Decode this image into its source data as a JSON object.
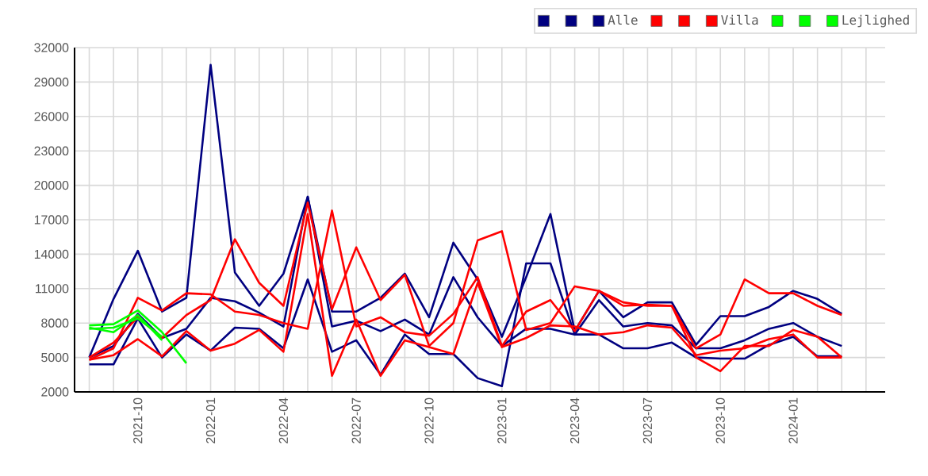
{
  "chart_data": {
    "type": "line",
    "x": [
      "2021-08",
      "2021-09",
      "2021-10",
      "2021-11",
      "2021-12",
      "2022-01",
      "2022-02",
      "2022-03",
      "2022-04",
      "2022-05",
      "2022-06",
      "2022-07",
      "2022-08",
      "2022-09",
      "2022-10",
      "2022-11",
      "2022-12",
      "2023-01",
      "2023-02",
      "2023-03",
      "2023-04",
      "2023-05",
      "2023-06",
      "2023-07",
      "2023-08",
      "2023-09",
      "2023-10",
      "2023-11",
      "2023-12",
      "2024-01",
      "2024-02",
      "2024-03"
    ],
    "series": [
      {
        "color": "#000080",
        "values": [
          5000,
          10100,
          14300,
          9000,
          10200,
          30500,
          12400,
          9500,
          12300,
          19000,
          9000,
          9000,
          10200,
          12300,
          8500,
          15000,
          11800,
          6800,
          12000,
          17500,
          7300,
          10800,
          8500,
          9800,
          9800,
          6100,
          8600,
          8600,
          9400,
          10800,
          10100,
          8800
        ]
      },
      {
        "color": "#000080",
        "values": [
          4400,
          4400,
          8400,
          5000,
          7000,
          5600,
          7600,
          7500,
          5800,
          11800,
          5500,
          6500,
          3500,
          7000,
          5300,
          5300,
          3200,
          2500,
          13200,
          13200,
          7000,
          7000,
          5800,
          5800,
          6300,
          5000,
          4900,
          4900,
          6100,
          6800,
          5100,
          5100
        ]
      },
      {
        "color": "#000080",
        "name": "Alle",
        "values": [
          5000,
          6000,
          8800,
          6700,
          7500,
          10200,
          9900,
          8900,
          7700,
          19000,
          7700,
          8200,
          7300,
          8300,
          7000,
          12000,
          8500,
          6000,
          7500,
          7500,
          7000,
          10000,
          7700,
          8000,
          7800,
          5800,
          5800,
          6500,
          7500,
          8000,
          6800,
          6000
        ]
      },
      {
        "color": "#ff0000",
        "values": [
          4800,
          5800,
          10200,
          9100,
          10600,
          10500,
          9000,
          8700,
          8000,
          7500,
          17800,
          7700,
          8500,
          7200,
          6900,
          8800,
          12000,
          6000,
          9000,
          10000,
          7300,
          10800,
          9500,
          9600,
          9500,
          5800,
          7000,
          11800,
          10600,
          10600,
          9500,
          8700
        ]
      },
      {
        "color": "#ff0000",
        "values": [
          5000,
          6300,
          8500,
          6700,
          8700,
          10000,
          15300,
          11500,
          9500,
          18500,
          9200,
          14600,
          10000,
          12200,
          6000,
          8000,
          15200,
          16000,
          7400,
          8000,
          11200,
          10800,
          9800,
          9500,
          9500,
          5000,
          3800,
          6000,
          6000,
          7400,
          6800,
          5000
        ]
      },
      {
        "color": "#ff0000",
        "name": "Villa",
        "values": [
          4800,
          5200,
          6600,
          5100,
          7300,
          5600,
          6200,
          7400,
          5500,
          17500,
          3400,
          8300,
          3400,
          6500,
          5900,
          5300,
          11500,
          5900,
          6700,
          7800,
          7700,
          7000,
          7200,
          7800,
          7600,
          5200,
          5600,
          5800,
          6600,
          7000,
          5000,
          5000
        ]
      },
      {
        "color": "#00ff00",
        "values": [
          7800,
          7900,
          9100,
          7200,
          4500,
          null,
          null,
          null,
          null,
          null,
          null,
          null,
          null,
          null,
          null,
          null,
          null,
          null,
          null,
          null,
          null,
          null,
          null,
          null,
          null,
          null,
          null,
          null,
          null,
          null,
          null,
          null
        ]
      },
      {
        "color": "#00ff00",
        "values": [
          7600,
          7200,
          8700,
          6500,
          null,
          null,
          null,
          null,
          null,
          null,
          null,
          null,
          null,
          null,
          null,
          null,
          null,
          null,
          null,
          null,
          null,
          null,
          null,
          null,
          null,
          null,
          null,
          null,
          null,
          null,
          null,
          null
        ]
      },
      {
        "color": "#00ff00",
        "name": "Lejlighed",
        "values": [
          7500,
          7600,
          8400,
          6800,
          null,
          null,
          null,
          null,
          null,
          null,
          null,
          null,
          null,
          null,
          null,
          null,
          null,
          null,
          null,
          null,
          null,
          null,
          null,
          null,
          null,
          null,
          null,
          null,
          null,
          null,
          null,
          null
        ]
      }
    ],
    "xlim": [
      "2021-07-13",
      "2024-04-25"
    ],
    "xticks": [
      {
        "value": "2021-08",
        "label": null
      },
      {
        "value": "2021-09",
        "label": null
      },
      {
        "value": "2021-10",
        "label": "2021-10"
      },
      {
        "value": "2021-11",
        "label": null
      },
      {
        "value": "2021-12",
        "label": null
      },
      {
        "value": "2022-01",
        "label": "2022-01"
      },
      {
        "value": "2022-02",
        "label": null
      },
      {
        "value": "2022-03",
        "label": null
      },
      {
        "value": "2022-04",
        "label": "2022-04"
      },
      {
        "value": "2022-05",
        "label": null
      },
      {
        "value": "2022-06",
        "label": null
      },
      {
        "value": "2022-07",
        "label": "2022-07"
      },
      {
        "value": "2022-08",
        "label": null
      },
      {
        "value": "2022-09",
        "label": null
      },
      {
        "value": "2022-10",
        "label": "2022-10"
      },
      {
        "value": "2022-11",
        "label": null
      },
      {
        "value": "2022-12",
        "label": null
      },
      {
        "value": "2023-01",
        "label": "2023-01"
      },
      {
        "value": "2023-02",
        "label": null
      },
      {
        "value": "2023-03",
        "label": null
      },
      {
        "value": "2023-04",
        "label": "2023-04"
      },
      {
        "value": "2023-05",
        "label": null
      },
      {
        "value": "2023-06",
        "label": null
      },
      {
        "value": "2023-07",
        "label": "2023-07"
      },
      {
        "value": "2023-08",
        "label": null
      },
      {
        "value": "2023-09",
        "label": null
      },
      {
        "value": "2023-10",
        "label": "2023-10"
      },
      {
        "value": "2023-11",
        "label": null
      },
      {
        "value": "2023-12",
        "label": null
      },
      {
        "value": "2024-01",
        "label": "2024-01"
      },
      {
        "value": "2024-02",
        "label": null
      },
      {
        "value": "2024-03",
        "label": null
      },
      {
        "value": "2024-04",
        "label": null
      }
    ],
    "ylim": [
      2000,
      32000
    ],
    "yticks": [
      2000,
      5000,
      8000,
      11000,
      14000,
      17000,
      20000,
      23000,
      26000,
      29000,
      32000
    ],
    "grid": true,
    "legend": "top right"
  }
}
